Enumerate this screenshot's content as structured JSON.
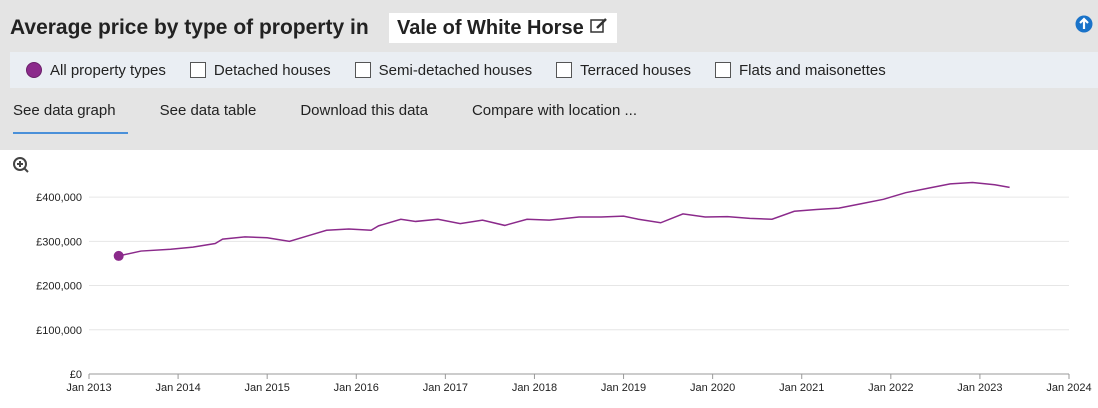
{
  "header": {
    "title": "Average price by type of property in",
    "location": "Vale of White Horse"
  },
  "filters": [
    {
      "label": "All property types",
      "checked": true
    },
    {
      "label": "Detached houses",
      "checked": false
    },
    {
      "label": "Semi-detached houses",
      "checked": false
    },
    {
      "label": "Terraced houses",
      "checked": false
    },
    {
      "label": "Flats and maisonettes",
      "checked": false
    }
  ],
  "tabs": {
    "items": [
      "See data graph",
      "See data table",
      "Download this data",
      "Compare with location ..."
    ],
    "active": 0
  },
  "chart_data": {
    "type": "line",
    "x": [
      "2013-05",
      "2013-08",
      "2013-12",
      "2014-03",
      "2014-06",
      "2014-07",
      "2014-10",
      "2015-01",
      "2015-04",
      "2015-07",
      "2015-09",
      "2015-12",
      "2016-03",
      "2016-04",
      "2016-07",
      "2016-09",
      "2016-12",
      "2017-03",
      "2017-06",
      "2017-09",
      "2017-12",
      "2018-03",
      "2018-07",
      "2018-10",
      "2019-01",
      "2019-03",
      "2019-06",
      "2019-09",
      "2019-12",
      "2020-03",
      "2020-06",
      "2020-09",
      "2020-12",
      "2021-03",
      "2021-06",
      "2021-09",
      "2021-12",
      "2022-03",
      "2022-06",
      "2022-09",
      "2022-12",
      "2023-03",
      "2023-05"
    ],
    "series": [
      {
        "color": "#8b2a8b",
        "values": [
          267000,
          278000,
          282000,
          287000,
          295000,
          305000,
          310000,
          308000,
          300000,
          315000,
          325000,
          328000,
          325000,
          335000,
          350000,
          345000,
          350000,
          340000,
          348000,
          336000,
          350000,
          348000,
          355000,
          355000,
          357000,
          350000,
          342000,
          362000,
          355000,
          356000,
          352000,
          350000,
          368000,
          372000,
          375000,
          385000,
          395000,
          410000,
          420000,
          430000,
          433000,
          428000,
          422000
        ]
      }
    ],
    "xlim": [
      "2013-01",
      "2024-01"
    ],
    "xticks": [
      {
        "value": "2013-01",
        "label": "Jan 2013"
      },
      {
        "value": "2014-01",
        "label": "Jan 2014"
      },
      {
        "value": "2015-01",
        "label": "Jan 2015"
      },
      {
        "value": "2016-01",
        "label": "Jan 2016"
      },
      {
        "value": "2017-01",
        "label": "Jan 2017"
      },
      {
        "value": "2018-01",
        "label": "Jan 2018"
      },
      {
        "value": "2019-01",
        "label": "Jan 2019"
      },
      {
        "value": "2020-01",
        "label": "Jan 2020"
      },
      {
        "value": "2021-01",
        "label": "Jan 2021"
      },
      {
        "value": "2022-01",
        "label": "Jan 2022"
      },
      {
        "value": "2023-01",
        "label": "Jan 2023"
      },
      {
        "value": "2024-01",
        "label": "Jan 2024"
      }
    ],
    "ylim": [
      0,
      450000
    ],
    "yticks": [
      {
        "value": 0,
        "label": "£0"
      },
      {
        "value": 100000,
        "label": "£100,000"
      },
      {
        "value": 200000,
        "label": "£200,000"
      },
      {
        "value": 300000,
        "label": "£300,000"
      },
      {
        "value": 400000,
        "label": "£400,000"
      }
    ],
    "grid": true
  }
}
